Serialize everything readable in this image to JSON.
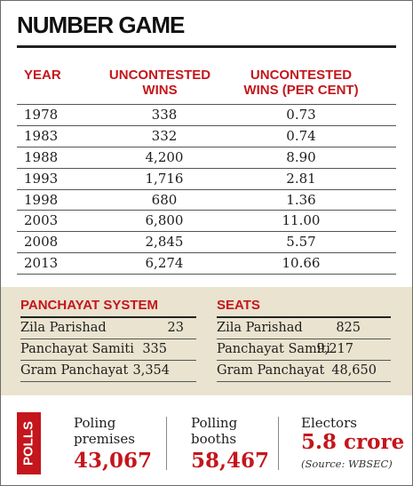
{
  "title": "NUMBER GAME",
  "table": {
    "headers": {
      "year": "YEAR",
      "wins": [
        "UNCONTESTED",
        "WINS"
      ],
      "pct": [
        "UNCONTESTED",
        "WINS (PER CENT)"
      ]
    },
    "rows": [
      {
        "year": "1978",
        "wins": "338",
        "pct": "0.73"
      },
      {
        "year": "1983",
        "wins": "332",
        "pct": "0.74"
      },
      {
        "year": "1988",
        "wins": "4,200",
        "pct": "8.90"
      },
      {
        "year": "1993",
        "wins": "1,716",
        "pct": "2.81"
      },
      {
        "year": "1998",
        "wins": "680",
        "pct": "1.36"
      },
      {
        "year": "2003",
        "wins": "6,800",
        "pct": "11.00"
      },
      {
        "year": "2008",
        "wins": "2,845",
        "pct": "5.57"
      },
      {
        "year": "2013",
        "wins": "6,274",
        "pct": "10.66"
      }
    ]
  },
  "panchayat": {
    "heading": "PANCHAYAT SYSTEM",
    "rows": [
      {
        "name": "Zila Parishad",
        "value": "23"
      },
      {
        "name": "Panchayat Samiti",
        "value": "335"
      },
      {
        "name": "Gram Panchayat",
        "value": "3,354"
      }
    ]
  },
  "seats": {
    "heading": "SEATS",
    "rows": [
      {
        "name": "Zila Parishad",
        "value": "825"
      },
      {
        "name": "Panchayat Samiti",
        "value": "9,217"
      },
      {
        "name": "Gram Panchayat",
        "value": "48,650"
      }
    ]
  },
  "polls": {
    "label": "POLLS",
    "premises": {
      "label1": "Poling",
      "label2": "premises",
      "value": "43,067"
    },
    "booths": {
      "label1": "Polling",
      "label2": "booths",
      "value": "58,467"
    },
    "electors": {
      "label": "Electors",
      "value": "5.8 crore",
      "source": "(Source: WBSEC)"
    }
  },
  "colors": {
    "accent": "#c4161c",
    "panel": "#e9e3cf",
    "text": "#1d1d1d"
  }
}
